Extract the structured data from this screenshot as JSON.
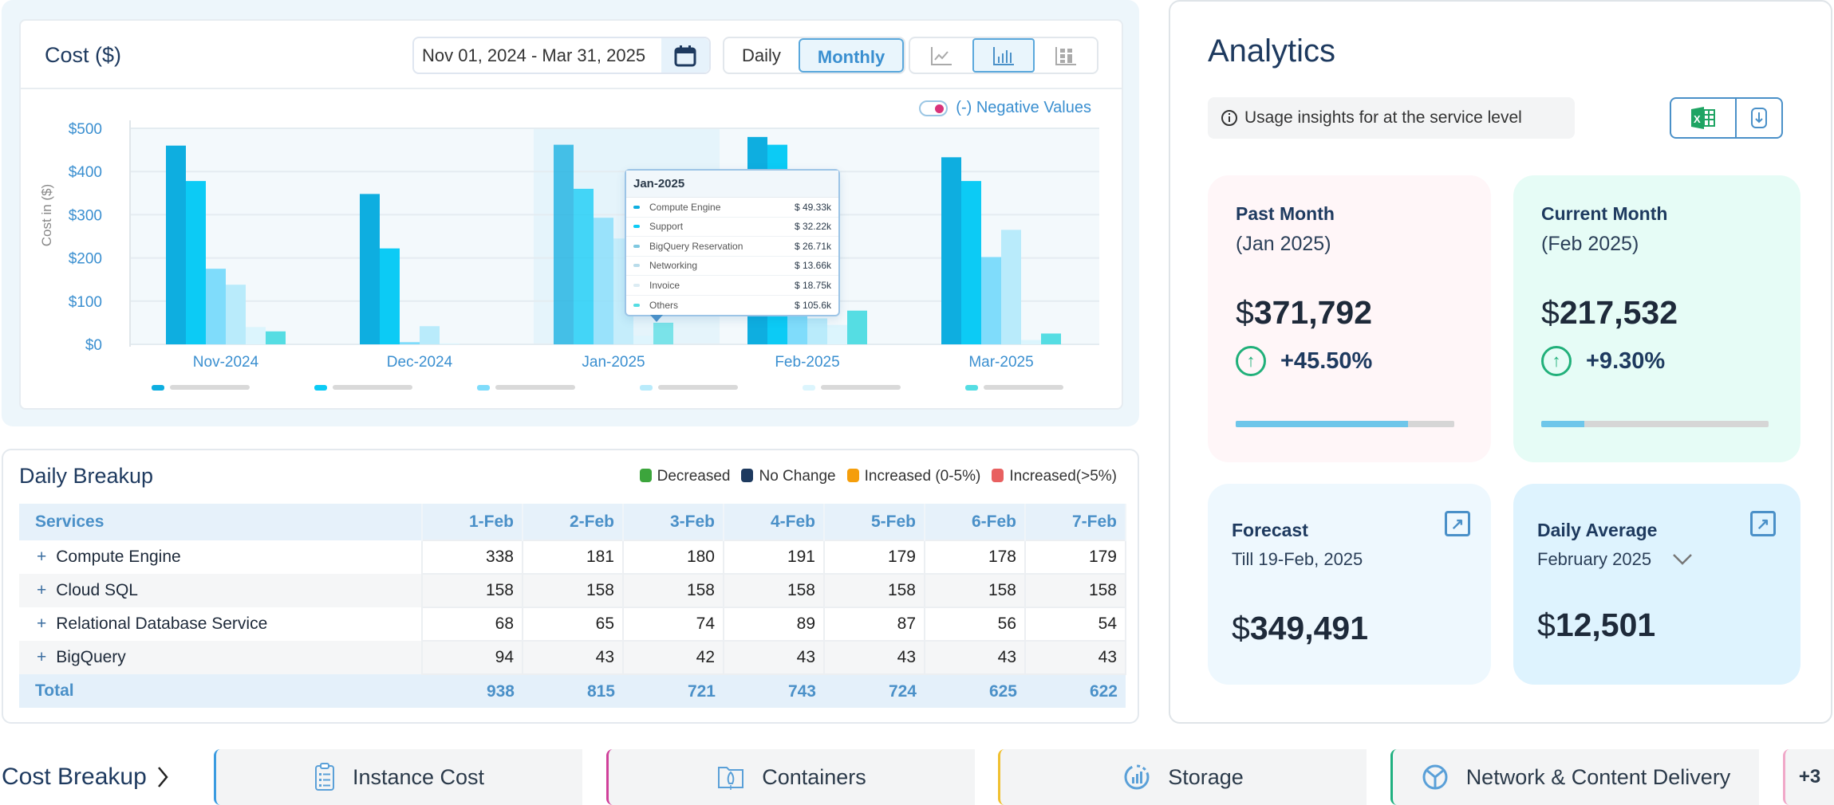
{
  "cost_panel": {
    "title": "Cost ($)",
    "date_range": "Nov 01, 2024 - Mar 31, 2025",
    "period_options": [
      "Daily",
      "Monthly"
    ],
    "period_selected": "Monthly",
    "chart_types": [
      "line-chart-icon",
      "bar-chart-icon",
      "stacked-bar-icon"
    ],
    "chart_type_selected": "bar-chart-icon",
    "negative_values_label": "(-) Negative Values"
  },
  "chart_data": {
    "type": "bar",
    "title": "Cost ($)",
    "xlabel": "",
    "ylabel": "Cost in ($)",
    "ylim": [
      0,
      500
    ],
    "yticks": [
      "$0",
      "$100",
      "$200",
      "$300",
      "$400",
      "$500"
    ],
    "grid": true,
    "categories": [
      "Nov-2024",
      "Dec-2024",
      "Jan-2025",
      "Feb-2025",
      "Mar-2025"
    ],
    "highlighted_category": "Jan-2025",
    "series": [
      {
        "name": "Compute Engine",
        "color": "#0eaee0",
        "values": [
          460,
          348,
          462,
          480,
          433
        ]
      },
      {
        "name": "Support",
        "color": "#0ccbf5",
        "values": [
          378,
          222,
          360,
          462,
          378
        ]
      },
      {
        "name": "BigQuery Reservation",
        "color": "#7fdcfb",
        "values": [
          175,
          5,
          293,
          75,
          202
        ]
      },
      {
        "name": "Networking",
        "color": "#b9ebfb",
        "values": [
          138,
          42,
          245,
          60,
          265
        ]
      },
      {
        "name": "Invoice",
        "color": "#dcf5fd",
        "values": [
          40,
          2,
          20,
          45,
          10
        ]
      },
      {
        "name": "Others",
        "color": "#55dde3",
        "values": [
          30,
          0,
          50,
          78,
          25
        ]
      }
    ],
    "legend_position": "bottom",
    "tooltip": {
      "title": "Jan-2025",
      "rows": [
        {
          "name": "Compute Engine",
          "value": "$ 49.33k",
          "color": "#0eaee0"
        },
        {
          "name": "Support",
          "value": "$ 32.22k",
          "color": "#0ccbf5"
        },
        {
          "name": "BigQuery Reservation",
          "value": "$ 26.71k",
          "color": "#7fc8e0"
        },
        {
          "name": "Networking",
          "value": "$ 13.66k",
          "color": "#b9dcea"
        },
        {
          "name": "Invoice",
          "value": "$ 18.75k",
          "color": "#dcecf3"
        },
        {
          "name": "Others",
          "value": "$ 105.6k",
          "color": "#55dde3"
        }
      ]
    }
  },
  "daily_breakup": {
    "title": "Daily Breakup",
    "legend": [
      {
        "label": "Decreased",
        "color": "#3ca53c"
      },
      {
        "label": "No Change",
        "color": "#1e3a5f"
      },
      {
        "label": "Increased (0-5%)",
        "color": "#f59e0b"
      },
      {
        "label": "Increased(>5%)",
        "color": "#e86060"
      }
    ],
    "columns": [
      "Services",
      "1-Feb",
      "2-Feb",
      "3-Feb",
      "4-Feb",
      "5-Feb",
      "6-Feb",
      "7-Feb"
    ],
    "rows": [
      {
        "service": "Compute Engine",
        "values": [
          "338",
          "181",
          "180",
          "191",
          "179",
          "178",
          "179"
        ],
        "status": [
          "none",
          "dec",
          "inc",
          "high",
          "dec",
          "inc",
          "none"
        ]
      },
      {
        "service": "Cloud SQL",
        "values": [
          "158",
          "158",
          "158",
          "158",
          "158",
          "158",
          "158"
        ],
        "status": [
          "none",
          "none",
          "none",
          "none",
          "none",
          "none",
          "dec"
        ]
      },
      {
        "service": "Relational Database Service",
        "values": [
          "68",
          "65",
          "74",
          "89",
          "87",
          "56",
          "54"
        ],
        "status": [
          "none",
          "dec",
          "high",
          "high",
          "dec",
          "inc",
          "dec"
        ]
      },
      {
        "service": "BigQuery",
        "values": [
          "94",
          "43",
          "42",
          "43",
          "43",
          "43",
          "43"
        ],
        "status": [
          "none",
          "dec",
          "inc",
          "none",
          "none",
          "none",
          "dec"
        ]
      }
    ],
    "total": {
      "label": "Total",
      "values": [
        "938",
        "815",
        "721",
        "743",
        "724",
        "625",
        "622"
      ]
    }
  },
  "analytics": {
    "title": "Analytics",
    "insight": "Usage insights for at the service level",
    "past_month": {
      "label": "Past Month",
      "sub": "(Jan 2025)",
      "currency": "$",
      "amount": "371,792",
      "change": "+45.50%",
      "progress_percent": 79
    },
    "current_month": {
      "label": "Current Month",
      "sub": "(Feb 2025)",
      "currency": "$",
      "amount": "217,532",
      "change": "+9.30%",
      "progress_percent": 19
    },
    "forecast": {
      "label": "Forecast",
      "sub": "Till  19-Feb, 2025",
      "currency": "$",
      "amount": "349,491"
    },
    "daily_average": {
      "label": "Daily Average",
      "sub": "February 2025",
      "currency": "$",
      "amount": "12,501"
    }
  },
  "cost_breakup": {
    "label": "Cost Breakup",
    "tabs": [
      {
        "label": "Instance Cost",
        "icon": "clipboard-list-icon",
        "color": "#3a9be0"
      },
      {
        "label": "Containers",
        "icon": "container-rocket-icon",
        "color": "#d0409a"
      },
      {
        "label": "Storage",
        "icon": "storage-gauge-icon",
        "color": "#f0c030"
      },
      {
        "label": "Network & Content Delivery",
        "icon": "network-icon",
        "color": "#20b080"
      }
    ],
    "more": "+3",
    "more_color": "#f0a8c8"
  }
}
